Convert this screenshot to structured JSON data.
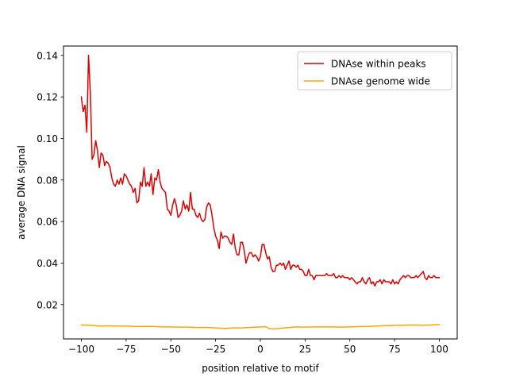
{
  "chart_data": {
    "type": "line",
    "title": "",
    "xlabel": "position relative to motif",
    "ylabel": "average DNA signal",
    "xlim": [
      -110,
      110
    ],
    "ylim": [
      0.0035,
      0.1445
    ],
    "xticks": [
      -100,
      -75,
      -50,
      -25,
      0,
      25,
      50,
      75,
      100
    ],
    "xtick_labels": [
      "−100",
      "−75",
      "−50",
      "−25",
      "0",
      "25",
      "50",
      "75",
      "100"
    ],
    "yticks": [
      0.02,
      0.04,
      0.06,
      0.08,
      0.1,
      0.12,
      0.14
    ],
    "ytick_labels": [
      "0.02",
      "0.04",
      "0.06",
      "0.08",
      "0.10",
      "0.12",
      "0.14"
    ],
    "grid": false,
    "legend_position": "upper-right",
    "series": [
      {
        "name": "DNAse within peaks",
        "color": "#e00000",
        "points": [
          [
            -100,
            0.12
          ],
          [
            -99,
            0.113
          ],
          [
            -98,
            0.116
          ],
          [
            -97,
            0.103
          ],
          [
            -96,
            0.14
          ],
          [
            -95,
            0.122
          ],
          [
            -94,
            0.09
          ],
          [
            -93,
            0.092
          ],
          [
            -92,
            0.099
          ],
          [
            -91,
            0.094
          ],
          [
            -90,
            0.086
          ],
          [
            -89,
            0.093
          ],
          [
            -88,
            0.092
          ],
          [
            -87,
            0.087
          ],
          [
            -86,
            0.089
          ],
          [
            -85,
            0.088
          ],
          [
            -84,
            0.086
          ],
          [
            -83,
            0.081
          ],
          [
            -82,
            0.078
          ],
          [
            -81,
            0.077
          ],
          [
            -80,
            0.08
          ],
          [
            -79,
            0.078
          ],
          [
            -78,
            0.081
          ],
          [
            -77,
            0.078
          ],
          [
            -76,
            0.083
          ],
          [
            -75,
            0.082
          ],
          [
            -74,
            0.08
          ],
          [
            -73,
            0.078
          ],
          [
            -72,
            0.077
          ],
          [
            -71,
            0.074
          ],
          [
            -70,
            0.076
          ],
          [
            -69,
            0.069
          ],
          [
            -68,
            0.07
          ],
          [
            -67,
            0.079
          ],
          [
            -66,
            0.077
          ],
          [
            -65,
            0.086
          ],
          [
            -64,
            0.077
          ],
          [
            -63,
            0.079
          ],
          [
            -62,
            0.077
          ],
          [
            -61,
            0.083
          ],
          [
            -60,
            0.073
          ],
          [
            -59,
            0.081
          ],
          [
            -58,
            0.08
          ],
          [
            -57,
            0.085
          ],
          [
            -56,
            0.079
          ],
          [
            -55,
            0.076
          ],
          [
            -54,
            0.075
          ],
          [
            -53,
            0.074
          ],
          [
            -52,
            0.066
          ],
          [
            -51,
            0.065
          ],
          [
            -50,
            0.063
          ],
          [
            -49,
            0.068
          ],
          [
            -48,
            0.071
          ],
          [
            -47,
            0.068
          ],
          [
            -46,
            0.062
          ],
          [
            -45,
            0.063
          ],
          [
            -44,
            0.065
          ],
          [
            -43,
            0.07
          ],
          [
            -42,
            0.066
          ],
          [
            -41,
            0.068
          ],
          [
            -40,
            0.065
          ],
          [
            -39,
            0.074
          ],
          [
            -38,
            0.066
          ],
          [
            -37,
            0.066
          ],
          [
            -36,
            0.063
          ],
          [
            -35,
            0.062
          ],
          [
            -34,
            0.064
          ],
          [
            -33,
            0.061
          ],
          [
            -32,
            0.06
          ],
          [
            -31,
            0.061
          ],
          [
            -30,
            0.067
          ],
          [
            -29,
            0.069
          ],
          [
            -28,
            0.068
          ],
          [
            -27,
            0.063
          ],
          [
            -26,
            0.057
          ],
          [
            -25,
            0.053
          ],
          [
            -24,
            0.051
          ],
          [
            -23,
            0.047
          ],
          [
            -22,
            0.055
          ],
          [
            -21,
            0.052
          ],
          [
            -20,
            0.053
          ],
          [
            -19,
            0.053
          ],
          [
            -18,
            0.052
          ],
          [
            -17,
            0.05
          ],
          [
            -16,
            0.049
          ],
          [
            -15,
            0.054
          ],
          [
            -14,
            0.047
          ],
          [
            -13,
            0.044
          ],
          [
            -12,
            0.044
          ],
          [
            -11,
            0.05
          ],
          [
            -10,
            0.05
          ],
          [
            -9,
            0.046
          ],
          [
            -8,
            0.04
          ],
          [
            -7,
            0.043
          ],
          [
            -6,
            0.045
          ],
          [
            -5,
            0.045
          ],
          [
            -4,
            0.043
          ],
          [
            -3,
            0.044
          ],
          [
            -2,
            0.043
          ],
          [
            -1,
            0.041
          ],
          [
            0,
            0.043
          ],
          [
            1,
            0.049
          ],
          [
            2,
            0.049
          ],
          [
            3,
            0.045
          ],
          [
            4,
            0.042
          ],
          [
            5,
            0.043
          ],
          [
            6,
            0.038
          ],
          [
            7,
            0.036
          ],
          [
            8,
            0.036
          ],
          [
            9,
            0.039
          ],
          [
            10,
            0.039
          ],
          [
            11,
            0.04
          ],
          [
            12,
            0.039
          ],
          [
            13,
            0.04
          ],
          [
            14,
            0.037
          ],
          [
            15,
            0.039
          ],
          [
            16,
            0.041
          ],
          [
            17,
            0.037
          ],
          [
            18,
            0.039
          ],
          [
            19,
            0.039
          ],
          [
            20,
            0.038
          ],
          [
            21,
            0.039
          ],
          [
            22,
            0.037
          ],
          [
            23,
            0.037
          ],
          [
            24,
            0.036
          ],
          [
            25,
            0.034
          ],
          [
            26,
            0.034
          ],
          [
            27,
            0.037
          ],
          [
            28,
            0.034
          ],
          [
            29,
            0.034
          ],
          [
            30,
            0.032
          ],
          [
            31,
            0.034
          ],
          [
            32,
            0.034
          ],
          [
            33,
            0.034
          ],
          [
            34,
            0.034
          ],
          [
            35,
            0.034
          ],
          [
            36,
            0.034
          ],
          [
            37,
            0.035
          ],
          [
            38,
            0.034
          ],
          [
            39,
            0.034
          ],
          [
            40,
            0.034
          ],
          [
            41,
            0.035
          ],
          [
            42,
            0.033
          ],
          [
            43,
            0.033
          ],
          [
            44,
            0.034
          ],
          [
            45,
            0.033
          ],
          [
            46,
            0.034
          ],
          [
            47,
            0.033
          ],
          [
            48,
            0.033
          ],
          [
            49,
            0.033
          ],
          [
            50,
            0.032
          ],
          [
            51,
            0.033
          ],
          [
            52,
            0.032
          ],
          [
            53,
            0.031
          ],
          [
            54,
            0.03
          ],
          [
            55,
            0.031
          ],
          [
            56,
            0.031
          ],
          [
            57,
            0.033
          ],
          [
            58,
            0.031
          ],
          [
            59,
            0.03
          ],
          [
            60,
            0.032
          ],
          [
            61,
            0.033
          ],
          [
            62,
            0.03
          ],
          [
            63,
            0.031
          ],
          [
            64,
            0.029
          ],
          [
            65,
            0.031
          ],
          [
            66,
            0.031
          ],
          [
            67,
            0.032
          ],
          [
            68,
            0.03
          ],
          [
            69,
            0.032
          ],
          [
            70,
            0.031
          ],
          [
            71,
            0.031
          ],
          [
            72,
            0.031
          ],
          [
            73,
            0.03
          ],
          [
            74,
            0.032
          ],
          [
            75,
            0.03
          ],
          [
            76,
            0.031
          ],
          [
            77,
            0.03
          ],
          [
            78,
            0.032
          ],
          [
            79,
            0.033
          ],
          [
            80,
            0.034
          ],
          [
            81,
            0.033
          ],
          [
            82,
            0.034
          ],
          [
            83,
            0.034
          ],
          [
            84,
            0.033
          ],
          [
            85,
            0.033
          ],
          [
            86,
            0.033
          ],
          [
            87,
            0.034
          ],
          [
            88,
            0.033
          ],
          [
            89,
            0.034
          ],
          [
            90,
            0.035
          ],
          [
            91,
            0.036
          ],
          [
            92,
            0.033
          ],
          [
            93,
            0.032
          ],
          [
            94,
            0.034
          ],
          [
            95,
            0.033
          ],
          [
            96,
            0.033
          ],
          [
            97,
            0.034
          ],
          [
            98,
            0.033
          ],
          [
            99,
            0.033
          ],
          [
            100,
            0.033
          ]
        ]
      },
      {
        "name": "DNAse genome wide",
        "color": "#ffa500",
        "points": [
          [
            -100,
            0.0102
          ],
          [
            -95,
            0.0101
          ],
          [
            -90,
            0.0097
          ],
          [
            -85,
            0.0098
          ],
          [
            -80,
            0.0097
          ],
          [
            -75,
            0.0097
          ],
          [
            -70,
            0.0095
          ],
          [
            -65,
            0.0095
          ],
          [
            -60,
            0.0095
          ],
          [
            -55,
            0.0093
          ],
          [
            -50,
            0.0093
          ],
          [
            -45,
            0.0092
          ],
          [
            -40,
            0.0092
          ],
          [
            -35,
            0.009
          ],
          [
            -30,
            0.009
          ],
          [
            -25,
            0.0088
          ],
          [
            -20,
            0.0085
          ],
          [
            -15,
            0.0088
          ],
          [
            -10,
            0.0088
          ],
          [
            -5,
            0.0091
          ],
          [
            0,
            0.0093
          ],
          [
            3,
            0.0094
          ],
          [
            5,
            0.0085
          ],
          [
            8,
            0.0083
          ],
          [
            12,
            0.0087
          ],
          [
            15,
            0.0089
          ],
          [
            20,
            0.0093
          ],
          [
            25,
            0.0092
          ],
          [
            30,
            0.0093
          ],
          [
            35,
            0.0093
          ],
          [
            40,
            0.0093
          ],
          [
            45,
            0.0092
          ],
          [
            50,
            0.0093
          ],
          [
            55,
            0.0094
          ],
          [
            60,
            0.0095
          ],
          [
            65,
            0.0097
          ],
          [
            70,
            0.0099
          ],
          [
            75,
            0.01
          ],
          [
            80,
            0.0101
          ],
          [
            85,
            0.0102
          ],
          [
            90,
            0.0101
          ],
          [
            95,
            0.0102
          ],
          [
            100,
            0.0104
          ]
        ]
      }
    ]
  }
}
